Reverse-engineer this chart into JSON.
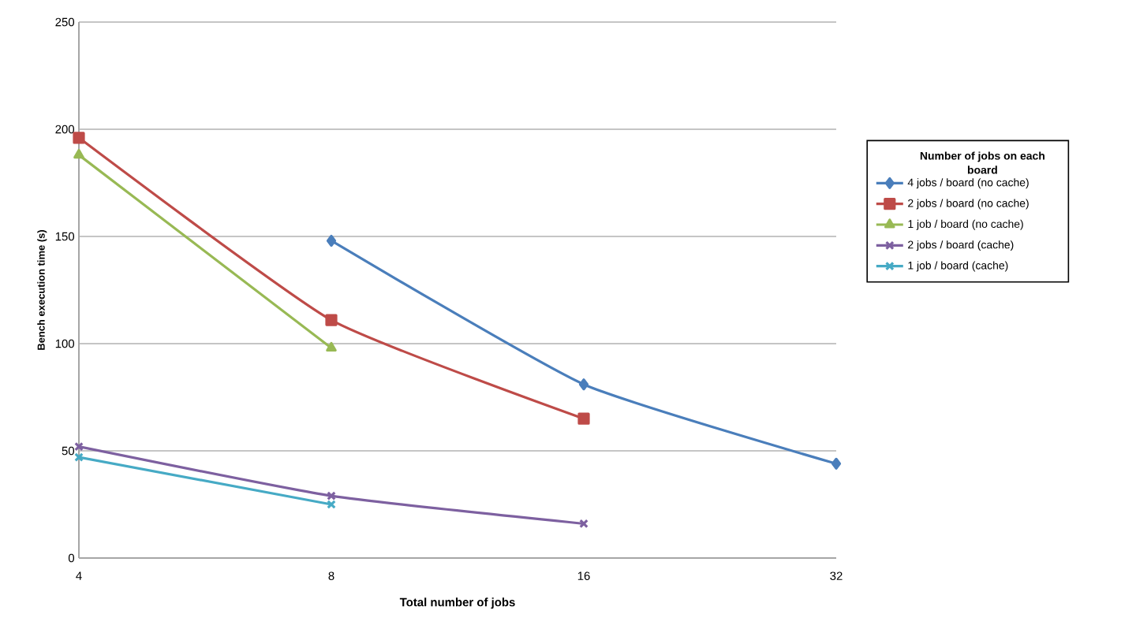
{
  "chart_data": {
    "type": "line",
    "xlabel": "Total number of jobs",
    "ylabel": "Bench execution time (s)",
    "legend_title": "Number of jobs on each board",
    "categories": [
      "4",
      "8",
      "16",
      "32"
    ],
    "series": [
      {
        "name": "4 jobs / board (no cache)",
        "color": "#4a7ebb",
        "marker": "diamond",
        "values": [
          null,
          148,
          81,
          44
        ]
      },
      {
        "name": "2 jobs / board (no cache)",
        "color": "#be4b48",
        "marker": "square",
        "values": [
          196,
          111,
          65,
          null
        ]
      },
      {
        "name": "1 job / board (no cache)",
        "color": "#98b954",
        "marker": "triangle",
        "values": [
          188,
          98,
          null,
          null
        ]
      },
      {
        "name": "2 jobs / board (cache)",
        "color": "#7d60a0",
        "marker": "cross",
        "values": [
          52,
          29,
          16,
          null
        ]
      },
      {
        "name": "1 job / board (cache)",
        "color": "#46aac5",
        "marker": "cross",
        "values": [
          47,
          25,
          null,
          null
        ]
      }
    ],
    "ylim": [
      0,
      250
    ],
    "yticks": [
      0,
      50,
      100,
      150,
      200,
      250
    ],
    "grid": "y",
    "legend": "right"
  }
}
